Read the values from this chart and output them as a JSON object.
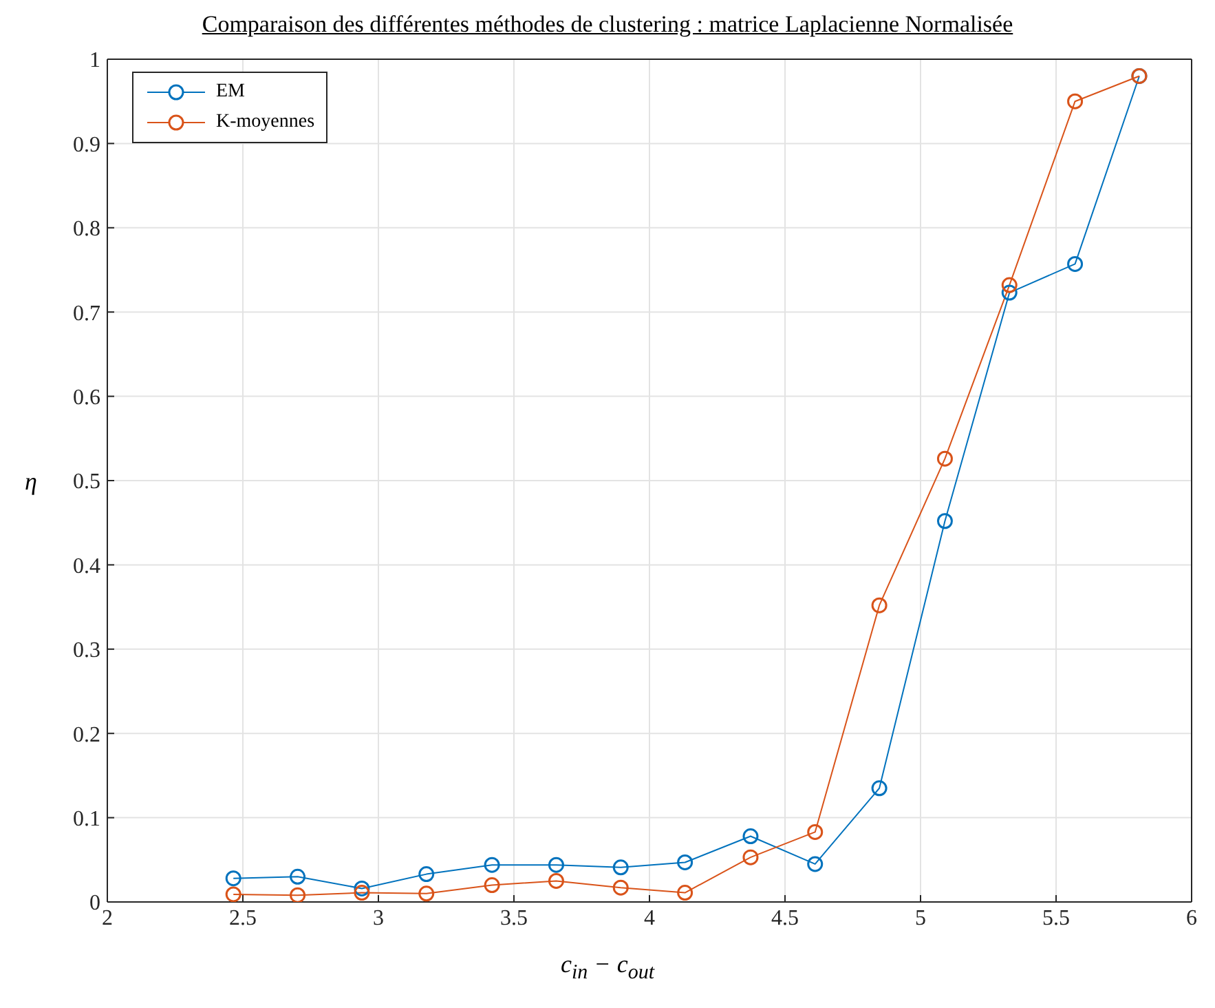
{
  "chart_data": {
    "type": "line",
    "title": "Comparaison des différentes méthodes de clustering : matrice Laplacienne Normalisée",
    "xlabel": "c$_{in}$ − c$_{out}$",
    "ylabel": "η",
    "x": [
      2.465,
      2.702,
      2.939,
      3.177,
      3.419,
      3.656,
      3.894,
      4.131,
      4.373,
      4.611,
      4.848,
      5.09,
      5.328,
      5.57,
      5.807
    ],
    "series": [
      {
        "name": "EM",
        "color": "#0072bd",
        "values": [
          0.028,
          0.03,
          0.016,
          0.033,
          0.044,
          0.044,
          0.041,
          0.047,
          0.078,
          0.045,
          0.135,
          0.452,
          0.723,
          0.757,
          0.98
        ]
      },
      {
        "name": "K-moyennes",
        "color": "#d95319",
        "values": [
          0.009,
          0.008,
          0.011,
          0.01,
          0.02,
          0.025,
          0.017,
          0.011,
          0.053,
          0.083,
          0.352,
          0.526,
          0.732,
          0.95,
          0.98
        ]
      }
    ],
    "xlim": [
      2,
      6
    ],
    "xticks": [
      2,
      2.5,
      3,
      3.5,
      4,
      4.5,
      5,
      5.5,
      6
    ],
    "ylim": [
      0,
      1
    ],
    "yticks": [
      0,
      0.1,
      0.2,
      0.3,
      0.4,
      0.5,
      0.6,
      0.7,
      0.8,
      0.9,
      1
    ],
    "grid": true,
    "legend": "top left",
    "marker": "circle",
    "line_style": "solid"
  }
}
